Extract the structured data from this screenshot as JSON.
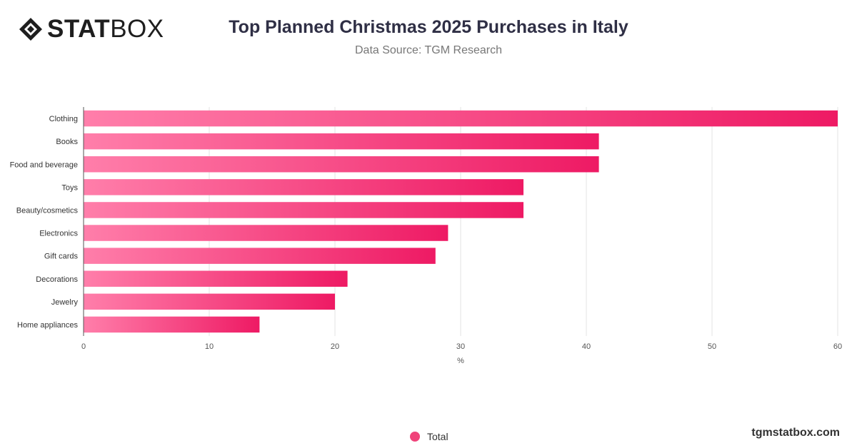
{
  "brand": {
    "logo_text_bold": "STAT",
    "logo_text_light": "BOX"
  },
  "header": {
    "title": "Top Planned Christmas 2025 Purchases in Italy",
    "subtitle": "Data Source: TGM Research"
  },
  "chart_data": {
    "type": "bar",
    "orientation": "horizontal",
    "categories": [
      "Clothing",
      "Books",
      "Food and beverage",
      "Toys",
      "Beauty/cosmetics",
      "Electronics",
      "Gift cards",
      "Decorations",
      "Jewelry",
      "Home appliances"
    ],
    "series": [
      {
        "name": "Total",
        "values": [
          60,
          41,
          41,
          35,
          35,
          29,
          28,
          21,
          20,
          14
        ]
      }
    ],
    "xlabel": "%",
    "xlim": [
      0,
      60
    ],
    "xticks": [
      0,
      10,
      20,
      30,
      40,
      50,
      60
    ],
    "grid": true,
    "legend_position": "bottom-center",
    "colors": {
      "bar_start": "#ff7eaa",
      "bar_end": "#ee1a64",
      "legend_dot": "#f0437a",
      "grid": "#e3e3e3"
    }
  },
  "legend": {
    "label": "Total"
  },
  "footer": {
    "credit": "tgmstatbox.com"
  }
}
